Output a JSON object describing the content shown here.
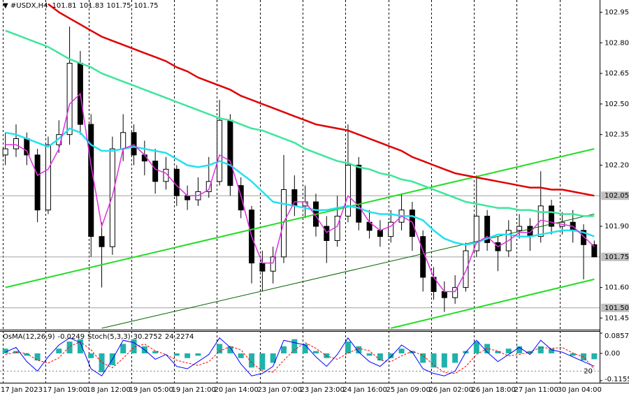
{
  "chart_data": {
    "type": "candlestick",
    "symbol": "#USDX,H4",
    "categories": [
      "17 Jan 2023",
      null,
      null,
      null,
      "17 Jan 19:00",
      null,
      null,
      null,
      "18 Jan 12:00",
      null,
      null,
      null,
      "19 Jan 05:00",
      null,
      null,
      null,
      "19 Jan 21:00",
      null,
      null,
      null,
      "20 Jan 14:00",
      null,
      null,
      null,
      "23 Jan 07:00",
      null,
      null,
      null,
      "23 Jan 23:00",
      null,
      null,
      null,
      "24 Jan 16:00",
      null,
      null,
      null,
      "25 Jan 09:00",
      null,
      null,
      null,
      "26 Jan 02:00",
      null,
      null,
      null,
      "26 Jan 18:00",
      null,
      null,
      null,
      "27 Jan 11:00",
      null,
      null,
      null,
      "30 Jan 04:00",
      null,
      null,
      null
    ],
    "open": [
      102.25,
      102.28,
      102.33,
      102.25,
      101.98,
      102.3,
      102.35,
      102.7,
      102.4,
      101.85,
      101.8,
      102.28,
      102.36,
      102.25,
      102.22,
      102.12,
      102.18,
      102.05,
      102.03,
      102.07,
      102.12,
      102.42,
      102.1,
      101.98,
      101.72,
      101.68,
      101.75,
      102.08,
      102.0,
      102.02,
      101.9,
      101.83,
      101.95,
      102.2,
      101.92,
      101.88,
      101.85,
      101.92,
      101.98,
      101.85,
      101.65,
      101.58,
      101.55,
      101.6,
      101.78,
      101.95,
      101.82,
      101.78,
      101.88,
      101.9,
      101.85,
      102.0,
      101.9,
      101.92,
      101.88,
      101.81
    ],
    "high": [
      102.36,
      102.4,
      102.36,
      102.28,
      102.34,
      102.42,
      102.88,
      102.76,
      102.45,
      101.92,
      102.34,
      102.45,
      102.4,
      102.32,
      102.28,
      102.24,
      102.2,
      102.1,
      102.14,
      102.24,
      102.52,
      102.45,
      102.14,
      102.0,
      101.78,
      101.8,
      102.25,
      102.15,
      102.1,
      102.06,
      101.95,
      102.05,
      102.4,
      102.24,
      101.98,
      101.93,
      101.98,
      102.06,
      102.02,
      101.88,
      101.7,
      101.63,
      101.66,
      101.82,
      102.15,
      101.98,
      101.85,
      101.93,
      101.96,
      101.94,
      102.17,
      102.03,
      101.97,
      101.98,
      101.91,
      101.83
    ],
    "low": [
      102.2,
      102.24,
      102.2,
      101.92,
      101.96,
      102.26,
      102.3,
      102.35,
      101.75,
      101.6,
      101.76,
      102.22,
      102.2,
      102.15,
      102.06,
      102.08,
      102.0,
      101.98,
      102.0,
      102.04,
      102.1,
      102.05,
      101.94,
      101.62,
      101.58,
      101.62,
      101.72,
      101.95,
      101.94,
      101.85,
      101.72,
      101.8,
      101.92,
      101.88,
      101.84,
      101.8,
      101.82,
      101.88,
      101.78,
      101.58,
      101.54,
      101.48,
      101.52,
      101.58,
      101.75,
      101.78,
      101.68,
      101.75,
      101.84,
      101.78,
      101.82,
      101.86,
      101.86,
      101.82,
      101.64,
      101.75
    ],
    "close": [
      102.28,
      102.33,
      102.25,
      101.98,
      102.3,
      102.35,
      102.7,
      102.4,
      101.85,
      101.8,
      102.28,
      102.36,
      102.25,
      102.22,
      102.12,
      102.18,
      102.05,
      102.03,
      102.07,
      102.12,
      102.42,
      102.1,
      101.98,
      101.72,
      101.68,
      101.75,
      102.08,
      102.0,
      102.02,
      101.9,
      101.83,
      101.95,
      102.2,
      101.92,
      101.88,
      101.85,
      101.92,
      101.98,
      101.85,
      101.65,
      101.58,
      101.55,
      101.6,
      101.78,
      101.95,
      101.82,
      101.78,
      101.88,
      101.9,
      101.85,
      102.0,
      101.9,
      101.92,
      101.88,
      101.81,
      101.75
    ],
    "overlays": [
      {
        "color": "#e00000",
        "values": [
          null,
          null,
          null,
          null,
          102.99,
          102.95,
          102.92,
          102.89,
          102.86,
          102.83,
          102.81,
          102.79,
          102.77,
          102.75,
          102.73,
          102.71,
          102.68,
          102.66,
          102.63,
          102.61,
          102.59,
          102.57,
          102.54,
          102.52,
          102.5,
          102.48,
          102.46,
          102.44,
          102.42,
          102.4,
          102.39,
          102.38,
          102.37,
          102.35,
          102.33,
          102.31,
          102.29,
          102.27,
          102.24,
          102.22,
          102.2,
          102.18,
          102.16,
          102.15,
          102.14,
          102.13,
          102.12,
          102.11,
          102.1,
          102.09,
          102.09,
          102.08,
          102.08,
          102.07,
          102.06,
          102.05
        ]
      },
      {
        "color": "#3ee69c",
        "values": [
          102.86,
          102.84,
          102.82,
          102.8,
          102.78,
          102.75,
          102.72,
          102.7,
          102.68,
          102.65,
          102.63,
          102.61,
          102.59,
          102.57,
          102.55,
          102.53,
          102.51,
          102.49,
          102.47,
          102.45,
          102.43,
          102.42,
          102.4,
          102.38,
          102.37,
          102.35,
          102.33,
          102.31,
          102.28,
          102.26,
          102.24,
          102.22,
          102.21,
          102.19,
          102.18,
          102.16,
          102.15,
          102.13,
          102.12,
          102.1,
          102.08,
          102.06,
          102.04,
          102.02,
          102.01,
          102.0,
          101.99,
          101.99,
          101.98,
          101.98,
          101.97,
          101.97,
          101.96,
          101.96,
          101.95,
          101.95
        ]
      },
      {
        "color": "#22e0f0",
        "values": [
          102.36,
          102.35,
          102.33,
          102.31,
          102.29,
          102.33,
          102.38,
          102.36,
          102.3,
          102.27,
          102.27,
          102.28,
          102.29,
          102.28,
          102.27,
          102.26,
          102.23,
          102.2,
          102.19,
          102.2,
          102.22,
          102.2,
          102.16,
          102.12,
          102.07,
          102.02,
          102.01,
          102.0,
          101.99,
          101.98,
          101.98,
          101.99,
          102.0,
          101.99,
          101.97,
          101.96,
          101.96,
          101.95,
          101.95,
          101.93,
          101.88,
          101.84,
          101.82,
          101.81,
          101.82,
          101.84,
          101.86,
          101.86,
          101.85,
          101.85,
          101.86,
          101.87,
          101.88,
          101.88,
          101.87,
          101.85
        ]
      },
      {
        "color": "#e030e0",
        "values": [
          102.3,
          102.3,
          102.27,
          102.15,
          102.18,
          102.28,
          102.5,
          102.55,
          102.2,
          101.9,
          102.05,
          102.28,
          102.3,
          102.25,
          102.18,
          102.16,
          102.1,
          102.05,
          102.05,
          102.08,
          102.25,
          102.22,
          102.05,
          101.85,
          101.72,
          101.72,
          101.92,
          102.02,
          102.02,
          101.95,
          101.87,
          101.9,
          102.05,
          102.0,
          101.92,
          101.88,
          101.9,
          101.95,
          101.92,
          101.78,
          101.65,
          101.58,
          101.58,
          101.68,
          101.82,
          101.85,
          101.8,
          101.83,
          101.87,
          101.87,
          101.93,
          101.92,
          101.91,
          101.9,
          101.85,
          101.8
        ]
      }
    ],
    "trendlines": [
      {
        "color": "#22dd22",
        "x": [
          0,
          55
        ],
        "y": [
          101.6,
          102.28
        ]
      },
      {
        "color": "#22dd22",
        "x": [
          36,
          55
        ],
        "y": [
          101.4,
          101.64
        ]
      },
      {
        "color": "#006400",
        "x": [
          9,
          55
        ],
        "y": [
          101.4,
          101.96
        ]
      }
    ],
    "ylim": [
      101.4,
      103.01
    ],
    "yticks": [
      102.95,
      {
        "value": 102.8,
        "label": "102.80"
      },
      102.65,
      {
        "value": 102.5,
        "label": "102.50"
      },
      102.35,
      {
        "value": 102.2,
        "label": "102.20"
      },
      {
        "value": 101.9,
        "label": "101.90"
      },
      {
        "value": 101.6,
        "label": "101.60"
      },
      101.45
    ],
    "levels": [
      102.05,
      101.75,
      {
        "value": 101.5,
        "label": "101.50"
      }
    ],
    "osma": {
      "label": "OsMA(12,26,9)",
      "color": "#20b2aa",
      "values": [
        0.02,
        0.01,
        -0.01,
        -0.03,
        0.0,
        0.02,
        0.05,
        0.06,
        -0.02,
        -0.08,
        -0.05,
        0.04,
        0.06,
        0.03,
        0.01,
        0.0,
        -0.01,
        -0.02,
        -0.01,
        0.0,
        0.04,
        0.03,
        -0.02,
        -0.06,
        -0.07,
        -0.04,
        0.03,
        0.06,
        0.04,
        0.01,
        -0.02,
        0.0,
        0.05,
        0.03,
        -0.01,
        -0.03,
        -0.02,
        0.02,
        0.01,
        -0.04,
        -0.06,
        -0.06,
        -0.04,
        0.01,
        0.05,
        0.04,
        0.01,
        0.02,
        0.03,
        0.01,
        0.03,
        0.02,
        0.0,
        -0.01,
        -0.03,
        -0.0249
      ],
      "ylim": [
        -0.1155,
        0.0857
      ],
      "yticks": [
        0.0857,
        {
          "value": 0,
          "label": "0.00"
        },
        -0.1155
      ]
    },
    "stoch": {
      "label": "Stoch(5,3,3)",
      "ylim": [
        0,
        100
      ],
      "yticks": [
        20
      ],
      "main": {
        "color": "#0000ff",
        "values": [
          60,
          70,
          40,
          20,
          50,
          75,
          90,
          80,
          25,
          10,
          45,
          85,
          80,
          65,
          45,
          55,
          30,
          25,
          40,
          55,
          90,
          70,
          35,
          10,
          15,
          30,
          85,
          80,
          75,
          50,
          30,
          55,
          90,
          60,
          40,
          30,
          50,
          75,
          60,
          25,
          15,
          10,
          20,
          60,
          85,
          60,
          40,
          55,
          70,
          55,
          85,
          65,
          60,
          50,
          40,
          30.2752
        ]
      },
      "signal": {
        "color": "#ff0000",
        "values": [
          55,
          60,
          57,
          43,
          37,
          48,
          72,
          82,
          65,
          38,
          27,
          47,
          70,
          77,
          63,
          55,
          43,
          37,
          32,
          40,
          62,
          72,
          65,
          38,
          20,
          18,
          43,
          65,
          80,
          68,
          52,
          45,
          58,
          68,
          63,
          43,
          40,
          52,
          62,
          53,
          33,
          17,
          15,
          30,
          55,
          68,
          62,
          52,
          55,
          60,
          70,
          68,
          70,
          58,
          50,
          24.2274
        ]
      }
    }
  }
}
